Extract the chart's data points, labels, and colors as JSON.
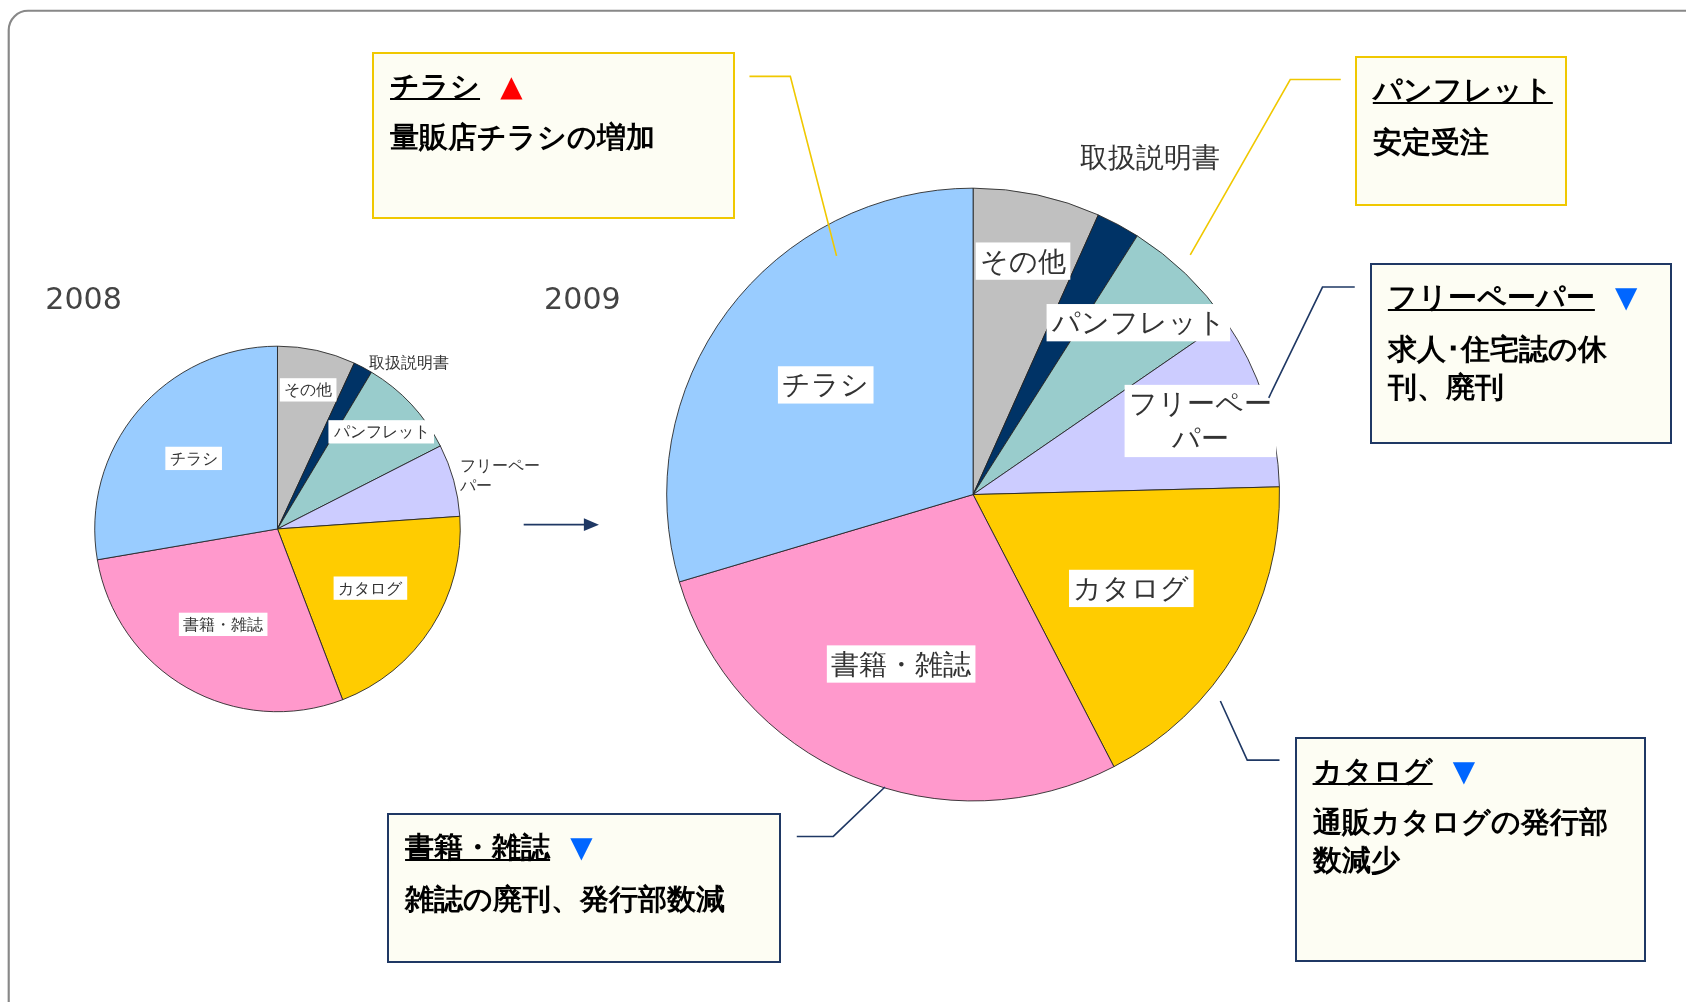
{
  "chart_data": [
    {
      "type": "pie",
      "title": "2008",
      "legend": false,
      "categories": [
        "その他",
        "取扱説明書",
        "パンフレット",
        "フリーペーパー",
        "カタログ",
        "書籍・雑誌",
        "チラシ"
      ],
      "values": [
        6.9,
        1.7,
        8.9,
        6.4,
        20.3,
        28.1,
        27.7
      ],
      "colors": [
        "#c0c0c0",
        "#003366",
        "#99cccc",
        "#ccccff",
        "#ffcc00",
        "#ff99cc",
        "#99ccff"
      ]
    },
    {
      "type": "pie",
      "title": "2009",
      "legend": false,
      "categories": [
        "その他",
        "取扱説明書",
        "パンフレット",
        "フリーペーパー",
        "カタログ",
        "書籍・雑誌",
        "チラシ"
      ],
      "values": [
        6.7,
        2.3,
        6.4,
        9.2,
        17.8,
        28.0,
        29.6
      ],
      "colors": [
        "#c0c0c0",
        "#003366",
        "#99cccc",
        "#ccccff",
        "#ffcc00",
        "#ff99cc",
        "#99ccff"
      ],
      "annotations": [
        "チラシ ▲",
        "量販店チラシの増加",
        "パンフレット",
        "安定受注",
        "フリーペーパー ▼",
        "求人･住宅誌の休刊、廃刊",
        "カタログ ▼",
        "通販カタログの発行部数減少",
        "書籍・雑誌 ▼",
        "雑誌の廃刊、発行部数減"
      ]
    }
  ]
}
